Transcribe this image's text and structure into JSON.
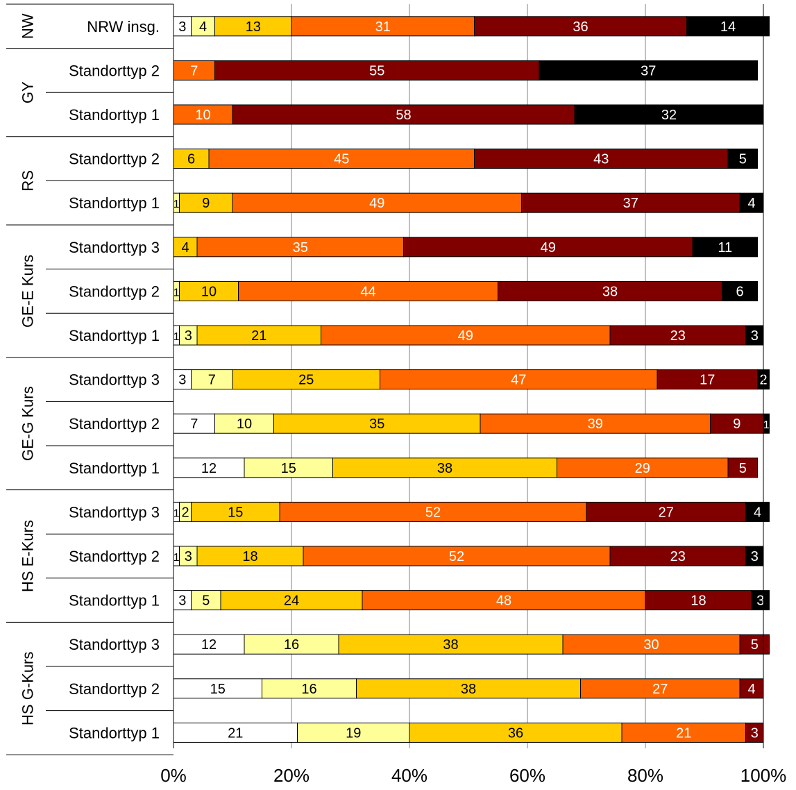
{
  "chart_data": {
    "type": "bar",
    "orientation": "horizontal",
    "stacked": true,
    "percent_stacked": true,
    "xlim": [
      0,
      100
    ],
    "x_tick_labels": [
      "0%",
      "20%",
      "40%",
      "60%",
      "80%",
      "100%"
    ],
    "grid": "vertical",
    "legend": "none",
    "groups": [
      {
        "name": "NW",
        "rows": [
          {
            "label": "NRW insg.",
            "values": [
              3,
              4,
              13,
              31,
              36,
              14
            ]
          }
        ]
      },
      {
        "name": "GY",
        "rows": [
          {
            "label": "Standorttyp 2",
            "values": [
              0,
              0,
              0,
              7,
              55,
              37
            ]
          },
          {
            "label": "Standorttyp 1",
            "values": [
              0,
              0,
              0,
              10,
              58,
              32
            ]
          }
        ]
      },
      {
        "name": "RS",
        "rows": [
          {
            "label": "Standorttyp 2",
            "values": [
              0,
              0,
              6,
              45,
              43,
              5
            ]
          },
          {
            "label": "Standorttyp 1",
            "values": [
              0,
              1,
              9,
              49,
              37,
              4
            ]
          }
        ]
      },
      {
        "name": "GE-E Kurs",
        "rows": [
          {
            "label": "Standorttyp 3",
            "values": [
              0,
              0,
              4,
              35,
              49,
              11
            ]
          },
          {
            "label": "Standorttyp 2",
            "values": [
              0,
              1,
              10,
              44,
              38,
              6
            ]
          },
          {
            "label": "Standorttyp 1",
            "values": [
              1,
              3,
              21,
              49,
              23,
              3
            ]
          }
        ]
      },
      {
        "name": "GE-G Kurs",
        "rows": [
          {
            "label": "Standorttyp 3",
            "values": [
              3,
              7,
              25,
              47,
              17,
              2
            ]
          },
          {
            "label": "Standorttyp 2",
            "values": [
              7,
              10,
              35,
              39,
              9,
              1
            ]
          },
          {
            "label": "Standorttyp 1",
            "values": [
              12,
              15,
              38,
              29,
              5,
              0
            ]
          }
        ]
      },
      {
        "name": "HS E-Kurs",
        "rows": [
          {
            "label": "Standorttyp 3",
            "values": [
              1,
              2,
              15,
              52,
              27,
              4
            ]
          },
          {
            "label": "Standorttyp 2",
            "values": [
              1,
              3,
              18,
              52,
              23,
              3
            ]
          },
          {
            "label": "Standorttyp 1",
            "values": [
              3,
              5,
              24,
              48,
              18,
              3
            ]
          }
        ]
      },
      {
        "name": "HS G-Kurs",
        "rows": [
          {
            "label": "Standorttyp 3",
            "values": [
              12,
              16,
              38,
              30,
              5,
              0
            ]
          },
          {
            "label": "Standorttyp 2",
            "values": [
              15,
              16,
              38,
              27,
              4,
              0
            ]
          },
          {
            "label": "Standorttyp 1",
            "values": [
              21,
              19,
              36,
              21,
              3,
              0
            ]
          }
        ]
      }
    ],
    "segment_colors": [
      "#ffffff",
      "#ffff99",
      "#ffcc00",
      "#ff6600",
      "#800000",
      "#000000"
    ],
    "segment_text_colors": [
      "#000000",
      "#000000",
      "#000000",
      "#ffffff",
      "#ffffff",
      "#ffffff"
    ],
    "bar_edge_color": "#000000",
    "gridline_color": "#808080"
  }
}
